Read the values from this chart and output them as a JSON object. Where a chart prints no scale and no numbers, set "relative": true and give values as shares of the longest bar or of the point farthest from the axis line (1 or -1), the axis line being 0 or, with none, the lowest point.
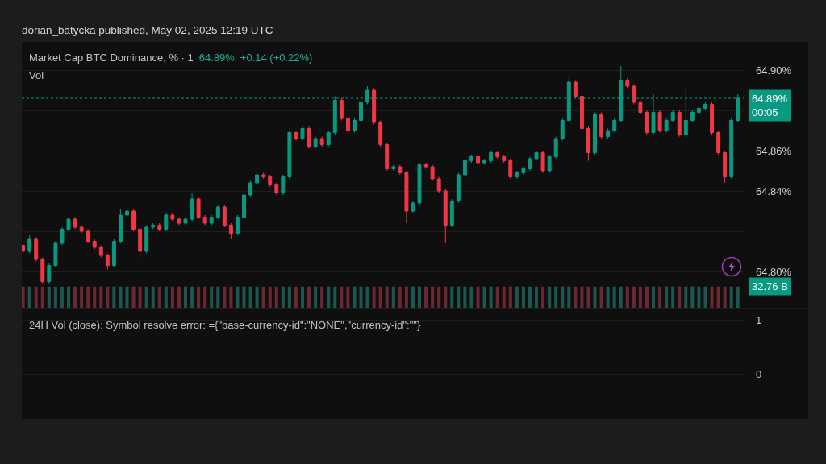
{
  "chart_data": [
    {
      "type": "candlestick",
      "title": "Market Cap BTC Dominance, % · 1",
      "annotations": [
        "dorian_batycka published, May 02, 2025 12:19 UTC",
        "64.89%",
        "+0.14 (+0.22%)"
      ],
      "categories": [
        null,
        null,
        null,
        null,
        null,
        null,
        null,
        null,
        null,
        null,
        null,
        null,
        null,
        null,
        null,
        null,
        null,
        null,
        null,
        null,
        null,
        null,
        null,
        null,
        null,
        null,
        null,
        null,
        null,
        null,
        null,
        null,
        null,
        null,
        null,
        null,
        null,
        null,
        null,
        null,
        null,
        null,
        null,
        null,
        null,
        null,
        null,
        null,
        null,
        null,
        null,
        null,
        null,
        null,
        null,
        null,
        null,
        null,
        null,
        null,
        null,
        null,
        null,
        null,
        null,
        null,
        null,
        null,
        null,
        null,
        null,
        null,
        null,
        null,
        null,
        null,
        null,
        null,
        null,
        null,
        null,
        null,
        null,
        null,
        null,
        null,
        null,
        null,
        null,
        null,
        null,
        null,
        null,
        null,
        null,
        null,
        null,
        null,
        null,
        null,
        null,
        null,
        null,
        null,
        null,
        null,
        null,
        null,
        null,
        null,
        null
      ],
      "ohlc": [
        [
          64.813,
          64.814,
          64.809,
          64.81
        ],
        [
          64.81,
          64.818,
          64.809,
          64.816
        ],
        [
          64.816,
          64.817,
          64.805,
          64.806
        ],
        [
          64.806,
          64.807,
          64.794,
          64.795
        ],
        [
          64.795,
          64.804,
          64.794,
          64.803
        ],
        [
          64.803,
          64.815,
          64.802,
          64.814
        ],
        [
          64.814,
          64.822,
          64.813,
          64.821
        ],
        [
          64.821,
          64.827,
          64.82,
          64.826
        ],
        [
          64.826,
          64.827,
          64.821,
          64.822
        ],
        [
          64.822,
          64.823,
          64.819,
          64.82
        ],
        [
          64.82,
          64.821,
          64.814,
          64.815
        ],
        [
          64.815,
          64.816,
          64.811,
          64.812
        ],
        [
          64.812,
          64.813,
          64.807,
          64.808
        ],
        [
          64.808,
          64.809,
          64.801,
          64.803
        ],
        [
          64.803,
          64.816,
          64.802,
          64.815
        ],
        [
          64.815,
          64.831,
          64.814,
          64.828
        ],
        [
          64.828,
          64.831,
          64.827,
          64.83
        ],
        [
          64.83,
          64.831,
          64.82,
          64.821
        ],
        [
          64.821,
          64.822,
          64.807,
          64.81
        ],
        [
          64.81,
          64.823,
          64.809,
          64.822
        ],
        [
          64.822,
          64.824,
          64.821,
          64.823
        ],
        [
          64.823,
          64.824,
          64.82,
          64.821
        ],
        [
          64.821,
          64.829,
          64.82,
          64.828
        ],
        [
          64.828,
          64.829,
          64.825,
          64.826
        ],
        [
          64.826,
          64.827,
          64.823,
          64.824
        ],
        [
          64.824,
          64.827,
          64.823,
          64.826
        ],
        [
          64.826,
          64.839,
          64.825,
          64.836
        ],
        [
          64.836,
          64.837,
          64.826,
          64.827
        ],
        [
          64.827,
          64.828,
          64.823,
          64.824
        ],
        [
          64.824,
          64.828,
          64.823,
          64.827
        ],
        [
          64.827,
          64.833,
          64.826,
          64.832
        ],
        [
          64.832,
          64.833,
          64.822,
          64.823
        ],
        [
          64.823,
          64.824,
          64.816,
          64.819
        ],
        [
          64.819,
          64.828,
          64.818,
          64.827
        ],
        [
          64.827,
          64.839,
          64.826,
          64.838
        ],
        [
          64.838,
          64.845,
          64.837,
          64.844
        ],
        [
          64.844,
          64.849,
          64.843,
          64.848
        ],
        [
          64.848,
          64.849,
          64.846,
          64.847
        ],
        [
          64.847,
          64.848,
          64.842,
          64.843
        ],
        [
          64.843,
          64.844,
          64.838,
          64.839
        ],
        [
          64.839,
          64.848,
          64.838,
          64.847
        ],
        [
          64.847,
          64.87,
          64.846,
          64.869
        ],
        [
          64.869,
          64.87,
          64.865,
          64.866
        ],
        [
          64.866,
          64.872,
          64.865,
          64.871
        ],
        [
          64.871,
          64.872,
          64.861,
          64.862
        ],
        [
          64.862,
          64.867,
          64.861,
          64.866
        ],
        [
          64.866,
          64.867,
          64.862,
          64.863
        ],
        [
          64.863,
          64.87,
          64.862,
          64.869
        ],
        [
          64.869,
          64.887,
          64.868,
          64.885
        ],
        [
          64.885,
          64.886,
          64.875,
          64.876
        ],
        [
          64.876,
          64.877,
          64.869,
          64.87
        ],
        [
          64.87,
          64.876,
          64.869,
          64.875
        ],
        [
          64.875,
          64.885,
          64.874,
          64.884
        ],
        [
          64.884,
          64.892,
          64.883,
          64.89
        ],
        [
          64.89,
          64.891,
          64.873,
          64.874
        ],
        [
          64.874,
          64.875,
          64.862,
          64.863
        ],
        [
          64.863,
          64.864,
          64.85,
          64.851
        ],
        [
          64.851,
          64.853,
          64.85,
          64.852
        ],
        [
          64.852,
          64.853,
          64.848,
          64.849
        ],
        [
          64.849,
          64.85,
          64.824,
          64.83
        ],
        [
          64.83,
          64.835,
          64.829,
          64.834
        ],
        [
          64.834,
          64.854,
          64.833,
          64.853
        ],
        [
          64.853,
          64.854,
          64.851,
          64.852
        ],
        [
          64.852,
          64.853,
          64.845,
          64.846
        ],
        [
          64.846,
          64.847,
          64.839,
          64.84
        ],
        [
          64.84,
          64.841,
          64.814,
          64.823
        ],
        [
          64.823,
          64.836,
          64.822,
          64.835
        ],
        [
          64.835,
          64.849,
          64.834,
          64.848
        ],
        [
          64.848,
          64.856,
          64.847,
          64.855
        ],
        [
          64.855,
          64.858,
          64.854,
          64.857
        ],
        [
          64.857,
          64.858,
          64.853,
          64.854
        ],
        [
          64.854,
          64.856,
          64.853,
          64.855
        ],
        [
          64.855,
          64.86,
          64.854,
          64.859
        ],
        [
          64.859,
          64.86,
          64.856,
          64.857
        ],
        [
          64.857,
          64.858,
          64.854,
          64.855
        ],
        [
          64.855,
          64.856,
          64.846,
          64.847
        ],
        [
          64.847,
          64.85,
          64.846,
          64.849
        ],
        [
          64.849,
          64.852,
          64.848,
          64.851
        ],
        [
          64.851,
          64.857,
          64.85,
          64.856
        ],
        [
          64.856,
          64.86,
          64.855,
          64.859
        ],
        [
          64.859,
          64.86,
          64.849,
          64.85
        ],
        [
          64.85,
          64.858,
          64.849,
          64.857
        ],
        [
          64.857,
          64.867,
          64.856,
          64.866
        ],
        [
          64.866,
          64.876,
          64.865,
          64.875
        ],
        [
          64.875,
          64.896,
          64.874,
          64.894
        ],
        [
          64.894,
          64.895,
          64.886,
          64.887
        ],
        [
          64.887,
          64.888,
          64.87,
          64.871
        ],
        [
          64.871,
          64.872,
          64.855,
          64.859
        ],
        [
          64.859,
          64.879,
          64.858,
          64.878
        ],
        [
          64.878,
          64.879,
          64.866,
          64.867
        ],
        [
          64.867,
          64.871,
          64.866,
          64.87
        ],
        [
          64.87,
          64.876,
          64.869,
          64.875
        ],
        [
          64.875,
          64.902,
          64.874,
          64.895
        ],
        [
          64.895,
          64.896,
          64.891,
          64.892
        ],
        [
          64.892,
          64.893,
          64.883,
          64.884
        ],
        [
          64.884,
          64.885,
          64.878,
          64.879
        ],
        [
          64.879,
          64.88,
          64.868,
          64.869
        ],
        [
          64.869,
          64.888,
          64.868,
          64.879
        ],
        [
          64.879,
          64.88,
          64.869,
          64.87
        ],
        [
          64.87,
          64.876,
          64.869,
          64.875
        ],
        [
          64.875,
          64.88,
          64.874,
          64.879
        ],
        [
          64.879,
          64.88,
          64.867,
          64.868
        ],
        [
          64.868,
          64.89,
          64.867,
          64.875
        ],
        [
          64.875,
          64.88,
          64.874,
          64.879
        ],
        [
          64.879,
          64.882,
          64.878,
          64.881
        ],
        [
          64.881,
          64.884,
          64.88,
          64.883
        ],
        [
          64.883,
          64.884,
          64.868,
          64.869
        ],
        [
          64.869,
          64.87,
          64.858,
          64.859
        ],
        [
          64.859,
          64.86,
          64.844,
          64.847
        ],
        [
          64.847,
          64.876,
          64.846,
          64.875
        ],
        [
          64.875,
          64.888,
          64.874,
          64.886
        ]
      ],
      "colors": [
        "#f23645",
        "#089981",
        "#f23645",
        "#f23645",
        "#089981",
        "#089981",
        "#089981",
        "#089981",
        "#f23645",
        "#f23645",
        "#f23645",
        "#f23645",
        "#f23645",
        "#f23645",
        "#089981",
        "#089981",
        "#089981",
        "#f23645",
        "#f23645",
        "#089981",
        "#089981",
        "#f23645",
        "#089981",
        "#f23645",
        "#f23645",
        "#089981",
        "#089981",
        "#f23645",
        "#f23645",
        "#089981",
        "#089981",
        "#f23645",
        "#f23645",
        "#089981",
        "#089981",
        "#089981",
        "#089981",
        "#f23645",
        "#f23645",
        "#f23645",
        "#089981",
        "#089981",
        "#f23645",
        "#089981",
        "#f23645",
        "#089981",
        "#f23645",
        "#089981",
        "#089981",
        "#f23645",
        "#f23645",
        "#089981",
        "#089981",
        "#089981",
        "#f23645",
        "#f23645",
        "#f23645",
        "#089981",
        "#f23645",
        "#f23645",
        "#089981",
        "#089981",
        "#f23645",
        "#f23645",
        "#f23645",
        "#f23645",
        "#089981",
        "#089981",
        "#089981",
        "#089981",
        "#f23645",
        "#089981",
        "#089981",
        "#f23645",
        "#f23645",
        "#f23645",
        "#089981",
        "#089981",
        "#089981",
        "#089981",
        "#f23645",
        "#089981",
        "#089981",
        "#089981",
        "#089981",
        "#f23645",
        "#f23645",
        "#f23645",
        "#089981",
        "#f23645",
        "#089981",
        "#089981",
        "#089981",
        "#f23645",
        "#f23645",
        "#f23645",
        "#f23645",
        "#089981",
        "#f23645",
        "#089981",
        "#089981",
        "#f23645",
        "#089981",
        "#089981",
        "#089981",
        "#089981",
        "#f23645",
        "#f23645",
        "#f23645",
        "#089981",
        "#089981"
      ],
      "ylim": [
        64.782,
        64.914
      ],
      "yticks": [
        {
          "value": 64.8,
          "label": "64.80%"
        },
        {
          "value": 64.82,
          "label": null
        },
        {
          "value": 64.84,
          "label": "64.84%"
        },
        {
          "value": 64.86,
          "label": "64.86%"
        },
        {
          "value": 64.88,
          "label": null
        },
        {
          "value": 64.9,
          "label": "64.90%"
        }
      ],
      "ref_lines": [
        {
          "axis": "y",
          "value": 64.886,
          "label": "64.89%\n00:05",
          "color": "#089981",
          "line_style": "dotted"
        }
      ],
      "grid": "y",
      "tick_labels": "y"
    },
    {
      "type": "bar",
      "title": "Vol",
      "relative": true,
      "categories": [
        null,
        null,
        null,
        null,
        null,
        null,
        null,
        null,
        null,
        null,
        null,
        null,
        null,
        null,
        null,
        null,
        null,
        null,
        null,
        null,
        null,
        null,
        null,
        null,
        null,
        null,
        null,
        null,
        null,
        null,
        null,
        null,
        null,
        null,
        null,
        null,
        null,
        null,
        null,
        null,
        null,
        null,
        null,
        null,
        null,
        null,
        null,
        null,
        null,
        null,
        null,
        null,
        null,
        null,
        null,
        null,
        null,
        null,
        null,
        null,
        null,
        null,
        null,
        null,
        null,
        null,
        null,
        null,
        null,
        null,
        null,
        null,
        null,
        null,
        null,
        null,
        null,
        null,
        null,
        null,
        null,
        null,
        null,
        null,
        null,
        null,
        null,
        null,
        null,
        null,
        null,
        null,
        null,
        null,
        null,
        null,
        null,
        null,
        null,
        null,
        null,
        null,
        null,
        null,
        null,
        null,
        null,
        null,
        null,
        null,
        null
      ],
      "values": [
        1,
        1,
        1,
        1,
        1,
        1,
        1,
        1,
        1,
        1,
        1,
        1,
        1,
        1,
        1,
        1,
        1,
        1,
        1,
        1,
        1,
        1,
        1,
        1,
        1,
        1,
        1,
        1,
        1,
        1,
        1,
        1,
        1,
        1,
        1,
        1,
        1,
        1,
        1,
        1,
        1,
        1,
        1,
        1,
        1,
        1,
        1,
        1,
        1,
        1,
        1,
        1,
        1,
        1,
        1,
        1,
        1,
        1,
        1,
        1,
        1,
        1,
        1,
        1,
        1,
        1,
        1,
        1,
        1,
        1,
        1,
        1,
        1,
        1,
        1,
        1,
        1,
        1,
        1,
        1,
        1,
        1,
        1,
        1,
        1,
        1,
        1,
        1,
        1,
        1,
        1,
        1,
        1,
        1,
        1,
        1,
        1,
        1,
        1,
        1,
        1,
        1,
        1,
        1,
        1,
        1,
        1,
        1,
        1,
        1,
        1
      ],
      "colors": [
        "#6a2832",
        "#1d5650",
        "#6a2832",
        "#6a2832",
        "#1d5650",
        "#1d5650",
        "#1d5650",
        "#1d5650",
        "#6a2832",
        "#6a2832",
        "#6a2832",
        "#6a2832",
        "#6a2832",
        "#6a2832",
        "#1d5650",
        "#1d5650",
        "#1d5650",
        "#6a2832",
        "#6a2832",
        "#1d5650",
        "#1d5650",
        "#6a2832",
        "#1d5650",
        "#6a2832",
        "#6a2832",
        "#1d5650",
        "#1d5650",
        "#6a2832",
        "#6a2832",
        "#1d5650",
        "#1d5650",
        "#6a2832",
        "#6a2832",
        "#1d5650",
        "#1d5650",
        "#1d5650",
        "#1d5650",
        "#6a2832",
        "#6a2832",
        "#6a2832",
        "#1d5650",
        "#1d5650",
        "#6a2832",
        "#1d5650",
        "#6a2832",
        "#1d5650",
        "#6a2832",
        "#1d5650",
        "#1d5650",
        "#6a2832",
        "#6a2832",
        "#1d5650",
        "#1d5650",
        "#1d5650",
        "#6a2832",
        "#6a2832",
        "#6a2832",
        "#1d5650",
        "#6a2832",
        "#6a2832",
        "#1d5650",
        "#1d5650",
        "#6a2832",
        "#6a2832",
        "#6a2832",
        "#6a2832",
        "#1d5650",
        "#1d5650",
        "#1d5650",
        "#1d5650",
        "#6a2832",
        "#1d5650",
        "#1d5650",
        "#6a2832",
        "#6a2832",
        "#6a2832",
        "#1d5650",
        "#1d5650",
        "#1d5650",
        "#1d5650",
        "#6a2832",
        "#1d5650",
        "#1d5650",
        "#1d5650",
        "#1d5650",
        "#6a2832",
        "#6a2832",
        "#6a2832",
        "#1d5650",
        "#6a2832",
        "#1d5650",
        "#1d5650",
        "#1d5650",
        "#6a2832",
        "#6a2832",
        "#6a2832",
        "#6a2832",
        "#1d5650",
        "#6a2832",
        "#1d5650",
        "#1d5650",
        "#6a2832",
        "#1d5650",
        "#1d5650",
        "#1d5650",
        "#1d5650",
        "#6a2832",
        "#6a2832",
        "#6a2832",
        "#1d5650",
        "#1d5650"
      ],
      "annotations": [
        "32.76 B"
      ]
    },
    {
      "type": "line",
      "title": "24H Vol (close): Symbol resolve error: ={\"base-currency-id\":\"NONE\",\"currency-id\":\"\"}",
      "categories": [
        null,
        null
      ],
      "values": [
        null,
        null
      ],
      "ylim": [
        -0.84,
        1.21
      ],
      "yticks": [
        0,
        1
      ],
      "grid": "y",
      "tick_labels": "y"
    }
  ]
}
